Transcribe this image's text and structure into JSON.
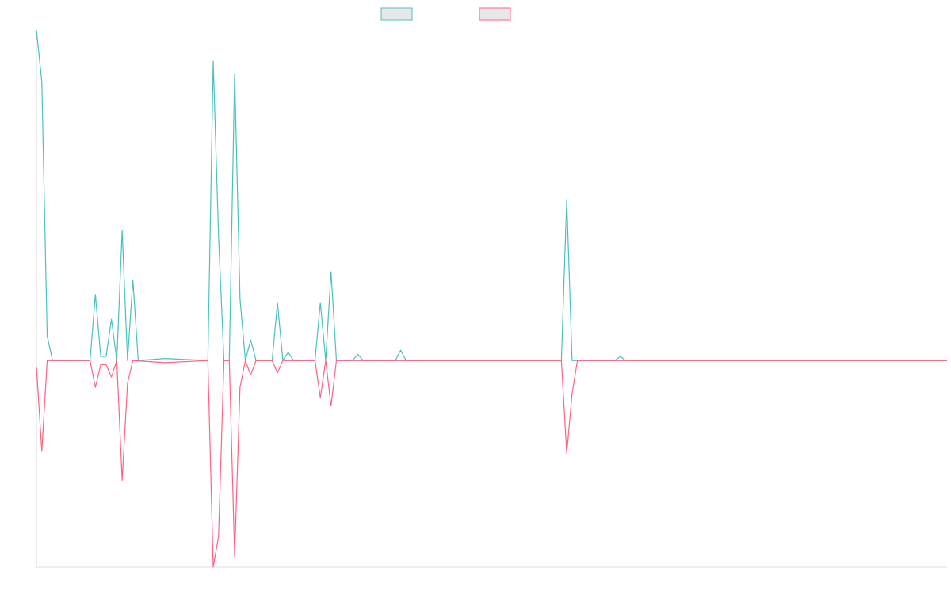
{
  "chart_data": {
    "type": "line",
    "title": "",
    "xlabel": "",
    "ylabel": "",
    "grid": false,
    "legend_position": "top-center",
    "ylim": [
      -100,
      160
    ],
    "colors": {
      "series_a": "#4bc0c0",
      "series_b": "#ff6384",
      "legend_fill": "#e8e8e8",
      "axis": "#dddddd"
    },
    "x_count": 171,
    "series": [
      {
        "name": "",
        "color": "#4bc0c0",
        "points": [
          [
            0,
            160
          ],
          [
            1,
            135
          ],
          [
            2,
            12
          ],
          [
            3,
            0
          ],
          [
            10,
            0
          ],
          [
            11,
            32
          ],
          [
            12,
            2
          ],
          [
            13,
            2
          ],
          [
            14,
            20
          ],
          [
            15,
            0
          ],
          [
            16,
            63
          ],
          [
            17,
            0
          ],
          [
            18,
            39
          ],
          [
            19,
            0
          ],
          [
            24,
            1
          ],
          [
            32,
            0
          ],
          [
            33,
            145
          ],
          [
            34,
            60
          ],
          [
            35,
            0
          ],
          [
            36,
            0
          ],
          [
            37,
            139
          ],
          [
            38,
            30
          ],
          [
            39,
            0
          ],
          [
            40,
            10
          ],
          [
            41,
            0
          ],
          [
            44,
            0
          ],
          [
            45,
            28
          ],
          [
            46,
            0
          ],
          [
            47,
            4
          ],
          [
            48,
            0
          ],
          [
            52,
            0
          ],
          [
            53,
            28
          ],
          [
            54,
            0
          ],
          [
            55,
            43
          ],
          [
            56,
            0
          ],
          [
            59,
            0
          ],
          [
            60,
            3
          ],
          [
            61,
            0
          ],
          [
            67,
            0
          ],
          [
            68,
            5
          ],
          [
            69,
            0
          ],
          [
            98,
            0
          ],
          [
            99,
            78
          ],
          [
            100,
            0
          ],
          [
            108,
            0
          ],
          [
            109,
            2
          ],
          [
            110,
            0
          ],
          [
            170,
            0
          ]
        ]
      },
      {
        "name": "",
        "color": "#ff6384",
        "points": [
          [
            0,
            -3
          ],
          [
            1,
            -44
          ],
          [
            2,
            0
          ],
          [
            10,
            0
          ],
          [
            11,
            -13
          ],
          [
            12,
            -2
          ],
          [
            13,
            -2
          ],
          [
            14,
            -8
          ],
          [
            15,
            0
          ],
          [
            16,
            -58
          ],
          [
            17,
            -11
          ],
          [
            18,
            0
          ],
          [
            24,
            -1
          ],
          [
            32,
            0
          ],
          [
            33,
            -100
          ],
          [
            34,
            -85
          ],
          [
            35,
            0
          ],
          [
            36,
            0
          ],
          [
            37,
            -95
          ],
          [
            38,
            -13
          ],
          [
            39,
            0
          ],
          [
            40,
            -7
          ],
          [
            41,
            0
          ],
          [
            44,
            0
          ],
          [
            45,
            -6
          ],
          [
            46,
            0
          ],
          [
            52,
            0
          ],
          [
            53,
            -18
          ],
          [
            54,
            0
          ],
          [
            55,
            -22
          ],
          [
            56,
            0
          ],
          [
            98,
            0
          ],
          [
            99,
            -45
          ],
          [
            100,
            -16
          ],
          [
            101,
            0
          ],
          [
            170,
            0
          ]
        ]
      }
    ]
  }
}
